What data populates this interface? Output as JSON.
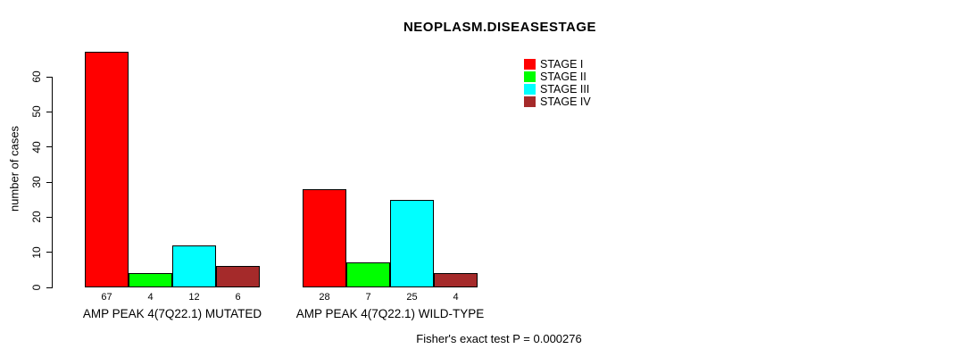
{
  "title": "NEOPLASM.DISEASESTAGE",
  "footer_note": "Fisher's exact test P = 0.000276",
  "colors": {
    "background": "#FFFFFF",
    "axis": "#000000",
    "text": "#000000",
    "stage1": "#FF0000",
    "stage2": "#00FF00",
    "stage3": "#00FFFF",
    "stage4": "#A52A2A"
  },
  "chart_data": {
    "type": "bar",
    "title": "NEOPLASM.DISEASESTAGE",
    "xlabel": "",
    "ylabel": "number of cases",
    "yticks": [
      0,
      10,
      20,
      30,
      40,
      50,
      60
    ],
    "ylim": [
      0,
      67
    ],
    "grid": false,
    "legend_position": "top-right",
    "bar_value_labels": true,
    "categories": [
      "AMP PEAK 4(7Q22.1) MUTATED",
      "AMP PEAK 4(7Q22.1) WILD-TYPE"
    ],
    "series": [
      {
        "name": "STAGE I",
        "color": "#FF0000",
        "values": [
          67,
          28
        ]
      },
      {
        "name": "STAGE II",
        "color": "#00FF00",
        "values": [
          4,
          7
        ]
      },
      {
        "name": "STAGE III",
        "color": "#00FFFF",
        "values": [
          12,
          25
        ]
      },
      {
        "name": "STAGE IV",
        "color": "#A52A2A",
        "values": [
          6,
          4
        ]
      }
    ],
    "annotation": "Fisher's exact test P = 0.000276"
  }
}
